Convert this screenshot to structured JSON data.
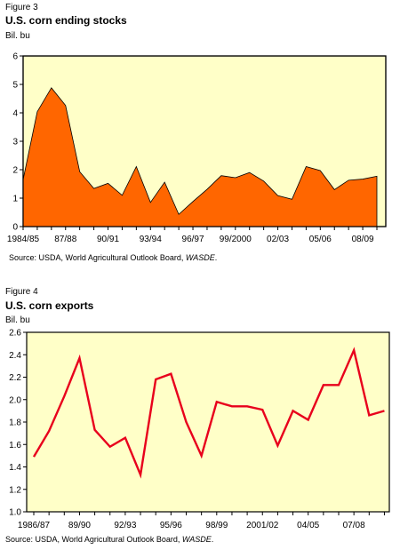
{
  "charts": [
    {
      "figure_label": "Figure 3",
      "title": "U.S. corn ending stocks",
      "unit": "Bil. bu",
      "source_prefix": "Source:  USDA, World Agricultural Outlook Board, ",
      "source_italic": "WASDE",
      "source_suffix": ".",
      "plot_bg": "#FFFFC8",
      "series_color": "#FF6600"
    },
    {
      "figure_label": "Figure 4",
      "title": "U.S. corn exports",
      "unit": "Bil. bu",
      "source_prefix": "Source:  USDA, World Agricultural Outlook Board, ",
      "source_italic": "WASDE",
      "source_suffix": ".",
      "plot_bg": "#FFFFC8",
      "series_color": "#E8001C"
    }
  ],
  "chart_data": [
    {
      "type": "area",
      "title": "U.S. corn ending stocks",
      "ylabel": "Bil. bu",
      "ylim": [
        0,
        6
      ],
      "yticks": [
        0,
        1,
        2,
        3,
        4,
        5,
        6
      ],
      "x": [
        "1984/85",
        "1985/86",
        "1986/87",
        "1987/88",
        "1988/89",
        "1989/90",
        "1990/91",
        "1991/92",
        "1992/93",
        "1993/94",
        "1994/95",
        "1995/96",
        "1996/97",
        "1997/98",
        "1998/99",
        "1999/2000",
        "2000/01",
        "2001/02",
        "2002/03",
        "2003/04",
        "2004/05",
        "2005/06",
        "2006/07",
        "2007/08",
        "2008/09",
        "2009/10"
      ],
      "tick_labels": [
        {
          "index": 0,
          "label": "1984/85"
        },
        {
          "index": 3,
          "label": "87/88"
        },
        {
          "index": 6,
          "label": "90/91"
        },
        {
          "index": 9,
          "label": "93/94"
        },
        {
          "index": 12,
          "label": "96/97"
        },
        {
          "index": 15,
          "label": "99/2000"
        },
        {
          "index": 18,
          "label": "02/03"
        },
        {
          "index": 21,
          "label": "05/06"
        },
        {
          "index": 24,
          "label": "08/09"
        }
      ],
      "series": [
        {
          "values": [
            1.65,
            4.04,
            4.88,
            4.26,
            1.93,
            1.34,
            1.52,
            1.1,
            2.11,
            0.85,
            1.56,
            0.43,
            0.88,
            1.31,
            1.79,
            1.72,
            1.9,
            1.6,
            1.09,
            0.96,
            2.11,
            1.97,
            1.3,
            1.63,
            1.67,
            1.77
          ]
        }
      ]
    },
    {
      "type": "line",
      "title": "U.S. corn exports",
      "ylabel": "Bil. bu",
      "ylim": [
        1.0,
        2.6
      ],
      "yticks": [
        "1.0",
        "1.2",
        "1.4",
        "1.6",
        "1.8",
        "2.0",
        "2.2",
        "2.4",
        "2.6"
      ],
      "x": [
        "1986/87",
        "1987/88",
        "1988/89",
        "1989/90",
        "1990/91",
        "1991/92",
        "1992/93",
        "1993/94",
        "1994/95",
        "1995/96",
        "1996/97",
        "1997/98",
        "1998/99",
        "1999/2000",
        "2000/01",
        "2001/02",
        "2002/03",
        "2003/04",
        "2004/05",
        "2005/06",
        "2006/07",
        "2007/08",
        "2008/09",
        "2009/10"
      ],
      "tick_labels": [
        {
          "index": 0,
          "label": "1986/87"
        },
        {
          "index": 3,
          "label": "89/90"
        },
        {
          "index": 6,
          "label": "92/93"
        },
        {
          "index": 9,
          "label": "95/96"
        },
        {
          "index": 12,
          "label": "98/99"
        },
        {
          "index": 15,
          "label": "2001/02"
        },
        {
          "index": 18,
          "label": "04/05"
        },
        {
          "index": 21,
          "label": "07/08"
        }
      ],
      "series": [
        {
          "values": [
            1.49,
            1.72,
            2.03,
            2.37,
            1.73,
            1.58,
            1.66,
            1.33,
            2.18,
            2.23,
            1.8,
            1.5,
            1.98,
            1.94,
            1.94,
            1.91,
            1.59,
            1.9,
            1.82,
            2.13,
            2.13,
            2.44,
            1.86,
            1.9
          ]
        }
      ]
    }
  ]
}
